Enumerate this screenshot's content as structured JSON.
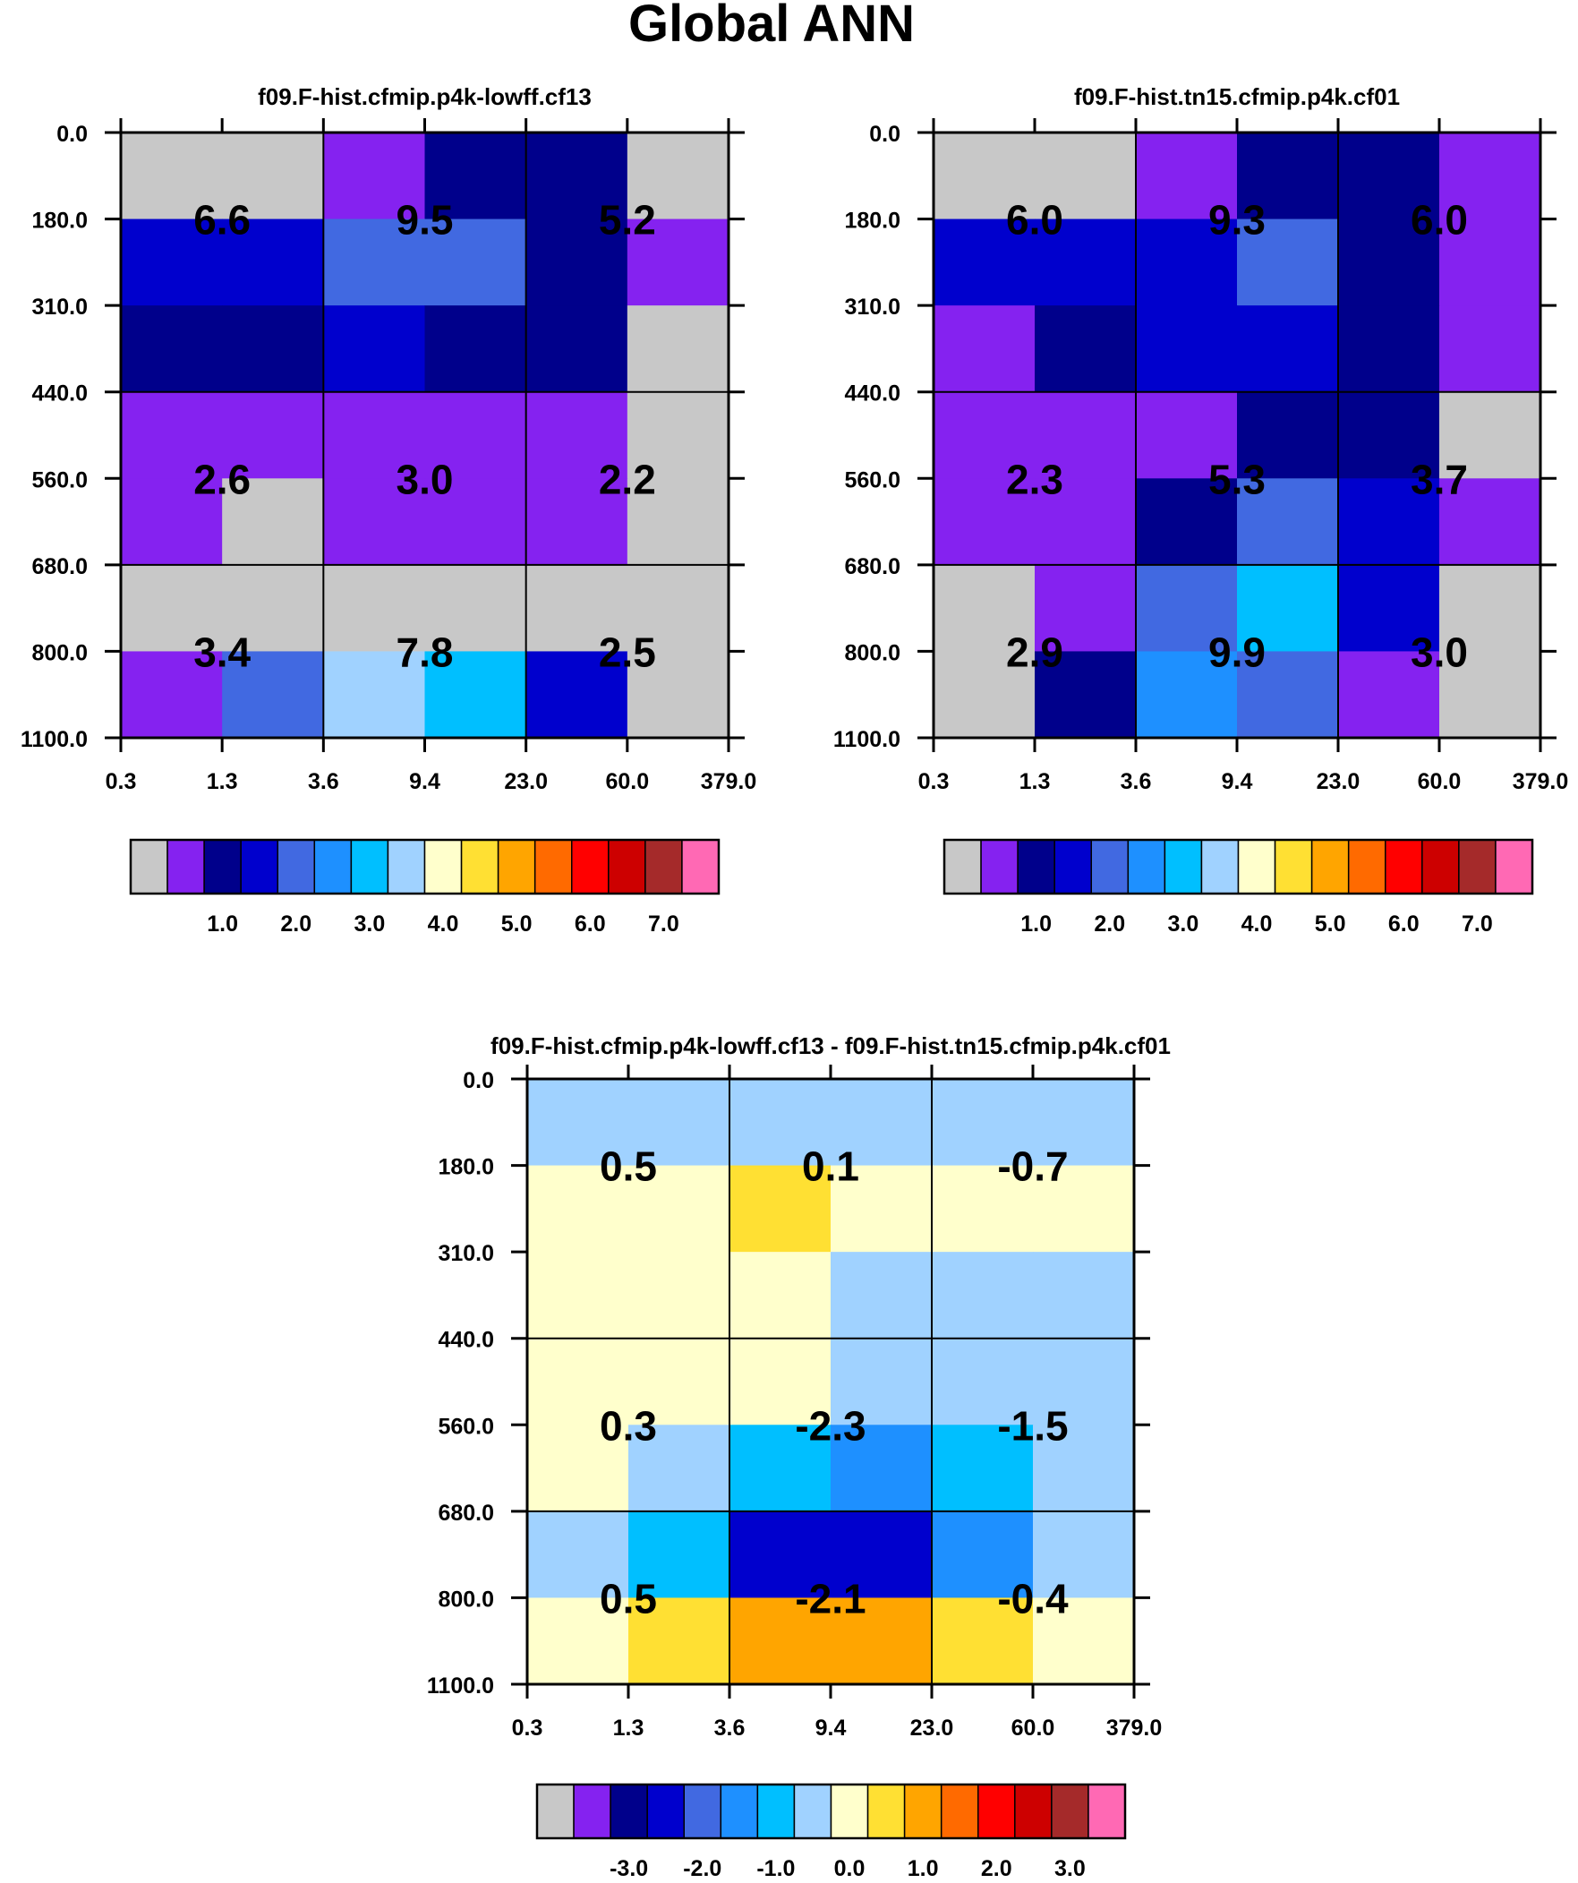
{
  "title": "Global ANN",
  "colors": {
    "palette": [
      "#c8c8c8",
      "#8522f0",
      "#00008b",
      "#0000cd",
      "#4169e1",
      "#1e90ff",
      "#00bfff",
      "#a0d2ff",
      "#ffffcc",
      "#ffe033",
      "#ffa500",
      "#ff6a00",
      "#ff0000",
      "#cd0000",
      "#a52a2a",
      "#ff69b4"
    ],
    "text": "#000000"
  },
  "chart_data": [
    {
      "type": "heatmap",
      "name": "panel-a",
      "title": "f09.F-hist.cfmip.p4k-lowff.cf13",
      "x_ticks": [
        "0.3",
        "1.3",
        "3.6",
        "9.4",
        "23.0",
        "60.0",
        "379.0"
      ],
      "y_ticks": [
        "0.0",
        "180.0",
        "310.0",
        "440.0",
        "560.0",
        "680.0",
        "800.0",
        "1100.0"
      ],
      "cell_color_index": [
        [
          0,
          0,
          1,
          2,
          2,
          0
        ],
        [
          3,
          3,
          4,
          4,
          2,
          1
        ],
        [
          2,
          2,
          3,
          2,
          2,
          0
        ],
        [
          1,
          1,
          1,
          1,
          1,
          0
        ],
        [
          1,
          0,
          1,
          1,
          1,
          0
        ],
        [
          0,
          0,
          0,
          0,
          0,
          0
        ],
        [
          1,
          4,
          7,
          6,
          3,
          0
        ]
      ],
      "block_labels": [
        [
          "6.6",
          "9.5",
          "5.2"
        ],
        [
          "2.6",
          "3.0",
          "2.2"
        ],
        [
          "3.4",
          "7.8",
          "2.5"
        ]
      ],
      "colorbar": {
        "tick_labels": [
          "1.0",
          "2.0",
          "3.0",
          "4.0",
          "5.0",
          "6.0",
          "7.0"
        ]
      }
    },
    {
      "type": "heatmap",
      "name": "panel-b",
      "title": "f09.F-hist.tn15.cfmip.p4k.cf01",
      "x_ticks": [
        "0.3",
        "1.3",
        "3.6",
        "9.4",
        "23.0",
        "60.0",
        "379.0"
      ],
      "y_ticks": [
        "0.0",
        "180.0",
        "310.0",
        "440.0",
        "560.0",
        "680.0",
        "800.0",
        "1100.0"
      ],
      "cell_color_index": [
        [
          0,
          0,
          1,
          2,
          2,
          1
        ],
        [
          3,
          3,
          3,
          4,
          2,
          1
        ],
        [
          1,
          2,
          3,
          3,
          2,
          1
        ],
        [
          1,
          1,
          1,
          2,
          2,
          0
        ],
        [
          1,
          1,
          2,
          4,
          3,
          1
        ],
        [
          0,
          1,
          4,
          6,
          3,
          0
        ],
        [
          0,
          2,
          5,
          4,
          1,
          0
        ]
      ],
      "block_labels": [
        [
          "6.0",
          "9.3",
          "6.0"
        ],
        [
          "2.3",
          "5.3",
          "3.7"
        ],
        [
          "2.9",
          "9.9",
          "3.0"
        ]
      ],
      "colorbar": {
        "tick_labels": [
          "1.0",
          "2.0",
          "3.0",
          "4.0",
          "5.0",
          "6.0",
          "7.0"
        ]
      }
    },
    {
      "type": "heatmap",
      "name": "panel-diff",
      "title": "f09.F-hist.cfmip.p4k-lowff.cf13 - f09.F-hist.tn15.cfmip.p4k.cf01",
      "x_ticks": [
        "0.3",
        "1.3",
        "3.6",
        "9.4",
        "23.0",
        "60.0",
        "379.0"
      ],
      "y_ticks": [
        "0.0",
        "180.0",
        "310.0",
        "440.0",
        "560.0",
        "680.0",
        "800.0",
        "1100.0"
      ],
      "cell_color_index": [
        [
          7,
          7,
          7,
          7,
          7,
          7
        ],
        [
          8,
          8,
          9,
          8,
          8,
          8
        ],
        [
          8,
          8,
          8,
          7,
          7,
          7
        ],
        [
          8,
          8,
          8,
          7,
          7,
          7
        ],
        [
          8,
          7,
          6,
          5,
          6,
          7
        ],
        [
          7,
          6,
          3,
          3,
          5,
          7
        ],
        [
          8,
          9,
          10,
          10,
          9,
          8
        ]
      ],
      "block_labels": [
        [
          "0.5",
          "0.1",
          "-0.7"
        ],
        [
          "0.3",
          "-2.3",
          "-1.5"
        ],
        [
          "0.5",
          "-2.1",
          "-0.4"
        ]
      ],
      "colorbar": {
        "tick_labels": [
          "-3.0",
          "-2.0",
          "-1.0",
          "0.0",
          "1.0",
          "2.0",
          "3.0"
        ]
      }
    }
  ]
}
